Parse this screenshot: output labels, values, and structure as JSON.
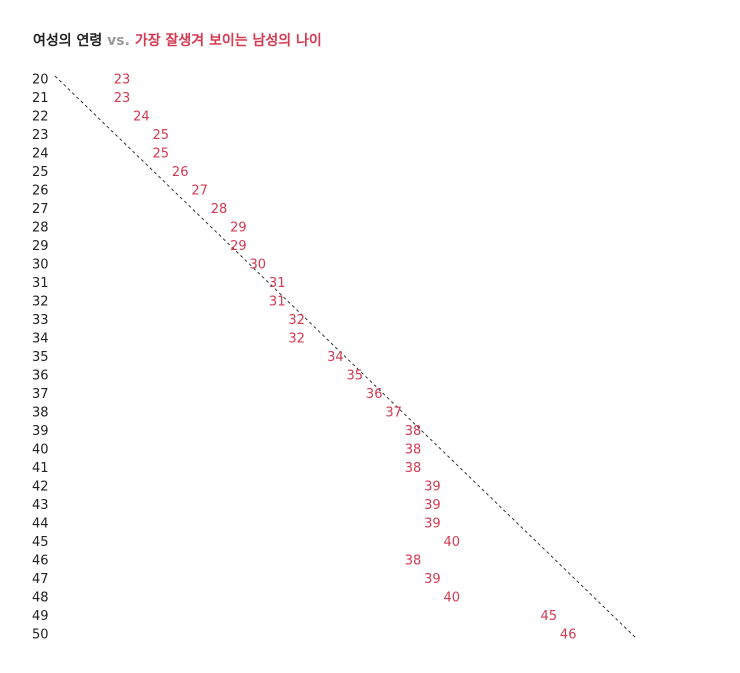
{
  "title": {
    "women": "여성의 연령",
    "vs": "vs.",
    "men": "가장 잘생겨 보이는 남성의 나이"
  },
  "colors": {
    "accent": "#d43a52",
    "text": "#222222",
    "muted": "#9a9a9a"
  },
  "chart_data": {
    "type": "scatter",
    "title": "여성의 연령 vs. 가장 잘생겨 보이는 남성의 나이",
    "xlabel": "",
    "ylabel": "",
    "x_range": [
      20,
      50
    ],
    "grid": false,
    "legend": "none",
    "reference_line": "y = x",
    "categories": [
      20,
      21,
      22,
      23,
      24,
      25,
      26,
      27,
      28,
      29,
      30,
      31,
      32,
      33,
      34,
      35,
      36,
      37,
      38,
      39,
      40,
      41,
      42,
      43,
      44,
      45,
      46,
      47,
      48,
      49,
      50
    ],
    "values": [
      23,
      23,
      24,
      25,
      25,
      26,
      27,
      28,
      29,
      29,
      30,
      31,
      31,
      32,
      32,
      34,
      35,
      36,
      37,
      38,
      38,
      38,
      39,
      39,
      39,
      40,
      38,
      39,
      40,
      45,
      46
    ]
  }
}
